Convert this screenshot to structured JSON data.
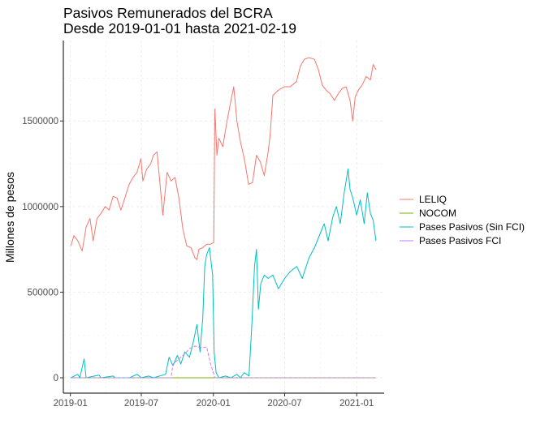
{
  "chart_data": {
    "type": "line",
    "title": "Pasivos Remunerados del BCRA",
    "subtitle": "Desde 2019-01-01 hasta 2021-02-19",
    "xlabel": "",
    "ylabel": "Millones de pesos",
    "x_ticks": [
      "2019-01",
      "2019-07",
      "2020-01",
      "2020-07",
      "2021-01"
    ],
    "y_ticks": [
      {
        "value": 0,
        "label": "0"
      },
      {
        "value": 500000,
        "label": "500000"
      },
      {
        "value": 1000000,
        "label": "1000000"
      },
      {
        "value": 1500000,
        "label": "1500000"
      }
    ],
    "xlim": [
      "2018-12-14",
      "2021-03-12"
    ],
    "ylim": [
      -90000,
      1970000
    ],
    "grid": true,
    "legend_position": "right",
    "series": [
      {
        "name": "LELIQ",
        "color": "#F8766D",
        "points": [
          [
            "2019-01-02",
            770000
          ],
          [
            "2019-01-10",
            830000
          ],
          [
            "2019-01-20",
            800000
          ],
          [
            "2019-01-31",
            740000
          ],
          [
            "2019-02-10",
            880000
          ],
          [
            "2019-02-20",
            930000
          ],
          [
            "2019-02-28",
            800000
          ],
          [
            "2019-03-10",
            930000
          ],
          [
            "2019-03-20",
            960000
          ],
          [
            "2019-03-31",
            1000000
          ],
          [
            "2019-04-10",
            980000
          ],
          [
            "2019-04-20",
            1060000
          ],
          [
            "2019-04-30",
            1050000
          ],
          [
            "2019-05-10",
            980000
          ],
          [
            "2019-05-20",
            1050000
          ],
          [
            "2019-05-31",
            1130000
          ],
          [
            "2019-06-10",
            1170000
          ],
          [
            "2019-06-20",
            1200000
          ],
          [
            "2019-06-30",
            1280000
          ],
          [
            "2019-07-05",
            1150000
          ],
          [
            "2019-07-15",
            1220000
          ],
          [
            "2019-07-25",
            1250000
          ],
          [
            "2019-08-01",
            1300000
          ],
          [
            "2019-08-10",
            1320000
          ],
          [
            "2019-08-15",
            1200000
          ],
          [
            "2019-08-25",
            950000
          ],
          [
            "2019-09-05",
            1200000
          ],
          [
            "2019-09-15",
            1150000
          ],
          [
            "2019-09-25",
            1170000
          ],
          [
            "2019-10-05",
            1050000
          ],
          [
            "2019-10-15",
            870000
          ],
          [
            "2019-10-25",
            770000
          ],
          [
            "2019-11-05",
            760000
          ],
          [
            "2019-11-15",
            700000
          ],
          [
            "2019-11-20",
            690000
          ],
          [
            "2019-11-25",
            750000
          ],
          [
            "2019-12-05",
            760000
          ],
          [
            "2019-12-15",
            780000
          ],
          [
            "2019-12-25",
            780000
          ],
          [
            "2020-01-02",
            790000
          ],
          [
            "2020-01-05",
            1570000
          ],
          [
            "2020-01-10",
            1300000
          ],
          [
            "2020-01-15",
            1400000
          ],
          [
            "2020-01-25",
            1350000
          ],
          [
            "2020-02-05",
            1500000
          ],
          [
            "2020-02-15",
            1620000
          ],
          [
            "2020-02-22",
            1700000
          ],
          [
            "2020-03-01",
            1500000
          ],
          [
            "2020-03-10",
            1380000
          ],
          [
            "2020-03-20",
            1280000
          ],
          [
            "2020-03-31",
            1130000
          ],
          [
            "2020-04-10",
            1140000
          ],
          [
            "2020-04-20",
            1300000
          ],
          [
            "2020-04-30",
            1260000
          ],
          [
            "2020-05-10",
            1180000
          ],
          [
            "2020-05-20",
            1320000
          ],
          [
            "2020-05-25",
            1420000
          ],
          [
            "2020-06-01",
            1650000
          ],
          [
            "2020-06-15",
            1680000
          ],
          [
            "2020-06-30",
            1700000
          ],
          [
            "2020-07-15",
            1700000
          ],
          [
            "2020-07-31",
            1730000
          ],
          [
            "2020-08-10",
            1820000
          ],
          [
            "2020-08-20",
            1860000
          ],
          [
            "2020-09-01",
            1870000
          ],
          [
            "2020-09-15",
            1860000
          ],
          [
            "2020-09-25",
            1800000
          ],
          [
            "2020-10-05",
            1710000
          ],
          [
            "2020-10-15",
            1680000
          ],
          [
            "2020-10-25",
            1660000
          ],
          [
            "2020-11-05",
            1620000
          ],
          [
            "2020-11-15",
            1660000
          ],
          [
            "2020-11-25",
            1690000
          ],
          [
            "2020-12-05",
            1700000
          ],
          [
            "2020-12-15",
            1620000
          ],
          [
            "2020-12-22",
            1500000
          ],
          [
            "2020-12-28",
            1640000
          ],
          [
            "2021-01-05",
            1680000
          ],
          [
            "2021-01-15",
            1710000
          ],
          [
            "2021-01-25",
            1760000
          ],
          [
            "2021-02-05",
            1740000
          ],
          [
            "2021-02-12",
            1830000
          ],
          [
            "2021-02-19",
            1800000
          ]
        ]
      },
      {
        "name": "NOCOM",
        "color": "#7CAE00",
        "points": [
          [
            "2019-01-02",
            0
          ],
          [
            "2019-09-01",
            0
          ],
          [
            "2019-09-10",
            0
          ],
          [
            "2019-11-01",
            0
          ],
          [
            "2019-12-20",
            0
          ],
          [
            "2020-06-01",
            0
          ],
          [
            "2021-02-19",
            0
          ]
        ]
      },
      {
        "name": "Pases Pasivos (Sin FCI)",
        "color": "#00BFC4",
        "points": [
          [
            "2019-01-02",
            0
          ],
          [
            "2019-01-20",
            20000
          ],
          [
            "2019-01-25",
            0
          ],
          [
            "2019-02-05",
            110000
          ],
          [
            "2019-02-10",
            0
          ],
          [
            "2019-03-15",
            15000
          ],
          [
            "2019-03-20",
            0
          ],
          [
            "2019-04-20",
            10000
          ],
          [
            "2019-04-25",
            0
          ],
          [
            "2019-06-01",
            0
          ],
          [
            "2019-06-20",
            20000
          ],
          [
            "2019-07-01",
            0
          ],
          [
            "2019-07-20",
            10000
          ],
          [
            "2019-08-01",
            0
          ],
          [
            "2019-09-01",
            20000
          ],
          [
            "2019-09-10",
            120000
          ],
          [
            "2019-09-20",
            70000
          ],
          [
            "2019-10-01",
            130000
          ],
          [
            "2019-10-10",
            80000
          ],
          [
            "2019-10-20",
            150000
          ],
          [
            "2019-11-01",
            120000
          ],
          [
            "2019-11-10",
            200000
          ],
          [
            "2019-11-20",
            310000
          ],
          [
            "2019-11-28",
            150000
          ],
          [
            "2019-12-05",
            350000
          ],
          [
            "2019-12-10",
            650000
          ],
          [
            "2019-12-15",
            720000
          ],
          [
            "2019-12-22",
            760000
          ],
          [
            "2019-12-30",
            600000
          ],
          [
            "2020-01-03",
            150000
          ],
          [
            "2020-01-08",
            30000
          ],
          [
            "2020-01-15",
            0
          ],
          [
            "2020-02-01",
            10000
          ],
          [
            "2020-02-15",
            0
          ],
          [
            "2020-03-01",
            20000
          ],
          [
            "2020-03-10",
            0
          ],
          [
            "2020-03-20",
            30000
          ],
          [
            "2020-04-01",
            10000
          ],
          [
            "2020-04-08",
            300000
          ],
          [
            "2020-04-15",
            650000
          ],
          [
            "2020-04-20",
            750000
          ],
          [
            "2020-04-25",
            400000
          ],
          [
            "2020-05-01",
            550000
          ],
          [
            "2020-05-10",
            600000
          ],
          [
            "2020-05-20",
            580000
          ],
          [
            "2020-06-01",
            600000
          ],
          [
            "2020-06-15",
            520000
          ],
          [
            "2020-07-01",
            580000
          ],
          [
            "2020-07-15",
            620000
          ],
          [
            "2020-08-01",
            650000
          ],
          [
            "2020-08-15",
            580000
          ],
          [
            "2020-09-01",
            700000
          ],
          [
            "2020-09-15",
            760000
          ],
          [
            "2020-10-01",
            850000
          ],
          [
            "2020-10-10",
            900000
          ],
          [
            "2020-10-20",
            800000
          ],
          [
            "2020-11-01",
            940000
          ],
          [
            "2020-11-10",
            1000000
          ],
          [
            "2020-11-20",
            900000
          ],
          [
            "2020-11-30",
            1080000
          ],
          [
            "2020-12-05",
            1150000
          ],
          [
            "2020-12-10",
            1220000
          ],
          [
            "2020-12-15",
            1100000
          ],
          [
            "2020-12-22",
            1050000
          ],
          [
            "2021-01-01",
            950000
          ],
          [
            "2021-01-10",
            1040000
          ],
          [
            "2021-01-20",
            900000
          ],
          [
            "2021-01-28",
            1080000
          ],
          [
            "2021-02-05",
            960000
          ],
          [
            "2021-02-12",
            920000
          ],
          [
            "2021-02-19",
            800000
          ]
        ]
      },
      {
        "name": "Pases Pasivos FCI",
        "color": "#C77CFF",
        "points": [
          [
            "2019-01-02",
            0
          ],
          [
            "2019-09-15",
            0
          ],
          [
            "2019-09-20",
            80000
          ],
          [
            "2019-10-05",
            110000
          ],
          [
            "2019-10-20",
            140000
          ],
          [
            "2019-11-01",
            170000
          ],
          [
            "2019-11-15",
            185000
          ],
          [
            "2019-11-25",
            180000
          ],
          [
            "2019-12-05",
            175000
          ],
          [
            "2019-12-15",
            180000
          ],
          [
            "2019-12-25",
            80000
          ],
          [
            "2020-01-05",
            0
          ],
          [
            "2021-02-19",
            0
          ]
        ]
      }
    ]
  }
}
